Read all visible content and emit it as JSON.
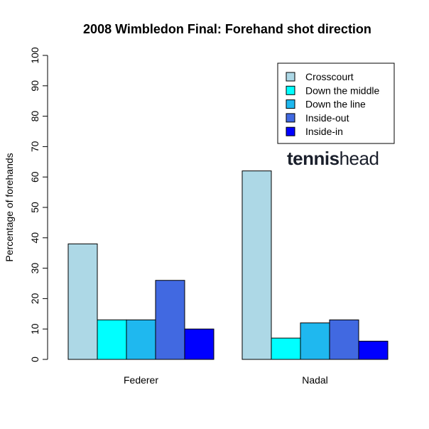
{
  "chart_data": {
    "type": "bar",
    "title": "2008 Wimbledon Final: Forehand shot direction",
    "xlabel": "",
    "ylabel": "Percentage of forehands",
    "ylim": [
      0,
      100
    ],
    "yticks": [
      0,
      10,
      20,
      30,
      40,
      50,
      60,
      70,
      80,
      90,
      100
    ],
    "categories": [
      "Federer",
      "Nadal"
    ],
    "series": [
      {
        "name": "Crosscourt",
        "color": "#add8e6",
        "values": [
          38,
          62
        ]
      },
      {
        "name": "Down the middle",
        "color": "#00ffff",
        "values": [
          13,
          7
        ]
      },
      {
        "name": "Down the line",
        "color": "#1fb8ef",
        "values": [
          13,
          12
        ]
      },
      {
        "name": "Inside-out",
        "color": "#4169e1",
        "values": [
          26,
          13
        ]
      },
      {
        "name": "Inside-in",
        "color": "#0000ff",
        "values": [
          10,
          6
        ]
      }
    ],
    "legend_position": "top-right",
    "grid": false
  },
  "watermark": {
    "part1": "tennis",
    "part2": "head"
  }
}
